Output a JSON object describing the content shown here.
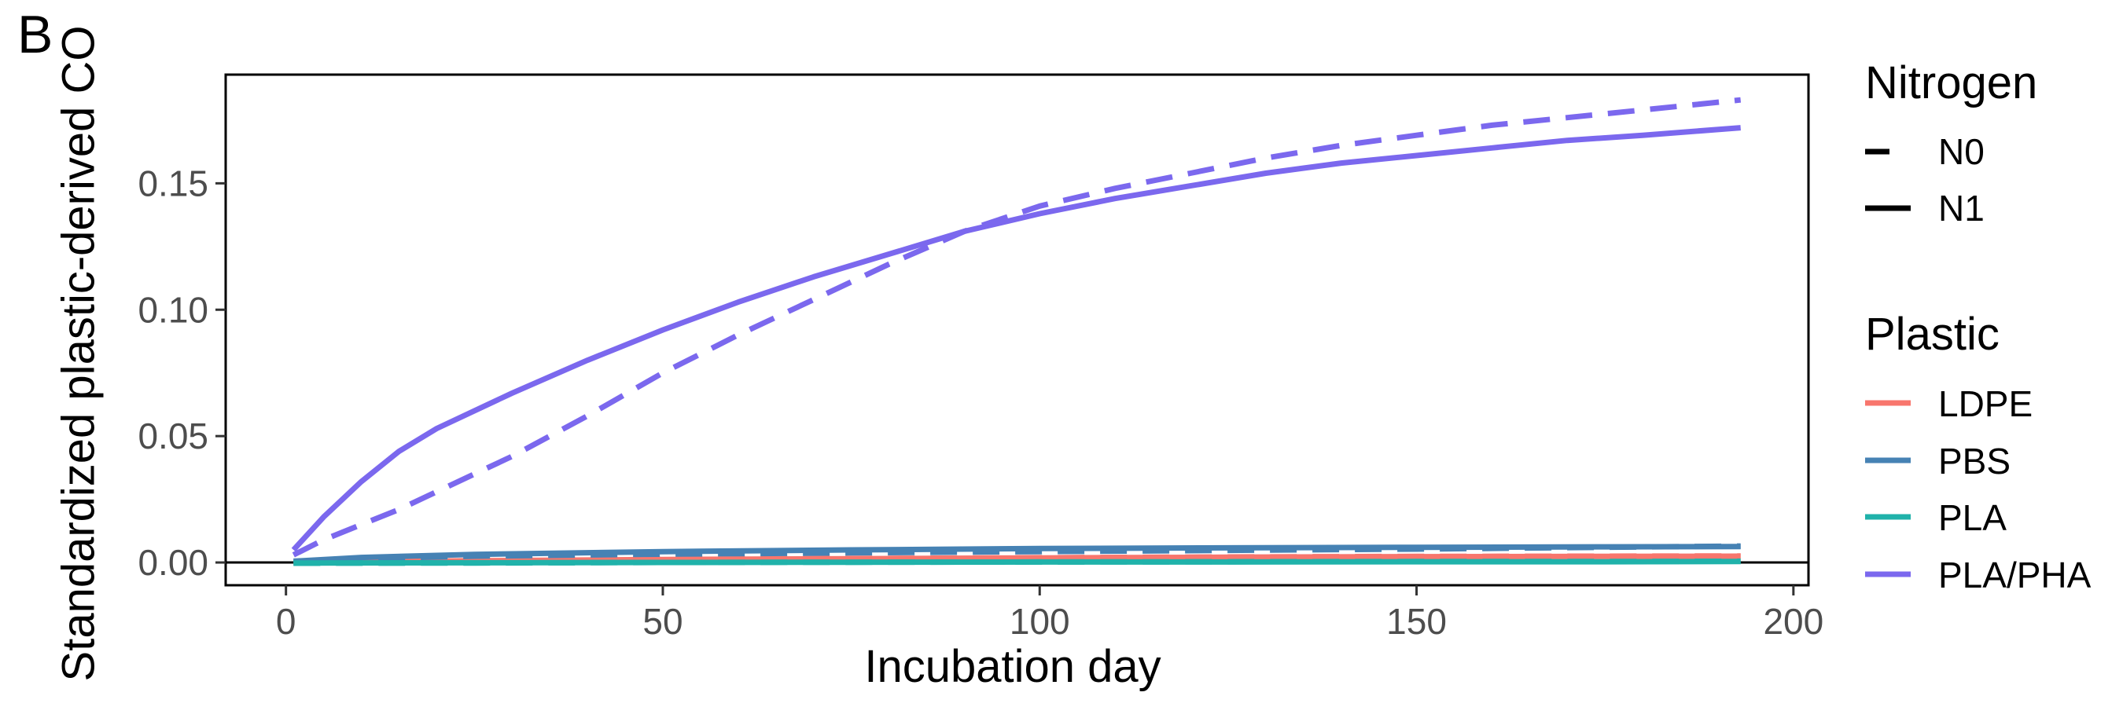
{
  "panel_label": "B",
  "chart_data": {
    "type": "line",
    "title": "",
    "xlabel": "Incubation day",
    "ylabel": "Standardized plastic-derived CO",
    "xlim": [
      -8,
      202
    ],
    "ylim": [
      -0.009,
      0.193
    ],
    "x_ticks": [
      0,
      50,
      100,
      150,
      200
    ],
    "x_tick_labels": [
      "0",
      "50",
      "100",
      "150",
      "200"
    ],
    "y_ticks": [
      0.0,
      0.05,
      0.1,
      0.15
    ],
    "y_tick_labels": [
      "0.00",
      "0.05",
      "0.10",
      "0.15"
    ],
    "reference_line_y": 0,
    "grid": false,
    "legend_position": "right",
    "legend": {
      "nitrogen": {
        "title": "Nitrogen",
        "items": [
          {
            "label": "N0",
            "linetype": "dashed"
          },
          {
            "label": "N1",
            "linetype": "solid"
          }
        ]
      },
      "plastic": {
        "title": "Plastic",
        "items": [
          {
            "label": "LDPE",
            "color": "#F8766D"
          },
          {
            "label": "PBS",
            "color": "#4682B4"
          },
          {
            "label": "PLA",
            "color": "#20B2AA"
          },
          {
            "label": "PLA/PHA",
            "color": "#7B68EE"
          }
        ]
      }
    },
    "series": [
      {
        "plastic": "LDPE",
        "nitrogen": "N0",
        "x": [
          1,
          25,
          50,
          75,
          100,
          125,
          150,
          175,
          193
        ],
        "y": [
          0.0,
          0.0008,
          0.0013,
          0.0016,
          0.0019,
          0.0022,
          0.0024,
          0.0025,
          0.0026
        ]
      },
      {
        "plastic": "LDPE",
        "nitrogen": "N1",
        "x": [
          1,
          25,
          50,
          75,
          100,
          125,
          150,
          175,
          193
        ],
        "y": [
          0.0,
          0.0007,
          0.0012,
          0.0015,
          0.0018,
          0.0021,
          0.0023,
          0.0024,
          0.0025
        ]
      },
      {
        "plastic": "PBS",
        "nitrogen": "N0",
        "x": [
          1,
          10,
          25,
          50,
          75,
          100,
          125,
          150,
          175,
          193
        ],
        "y": [
          0.0,
          0.0015,
          0.0025,
          0.0033,
          0.0038,
          0.0043,
          0.0048,
          0.0053,
          0.006,
          0.0065
        ]
      },
      {
        "plastic": "PBS",
        "nitrogen": "N1",
        "x": [
          1,
          10,
          25,
          50,
          75,
          100,
          125,
          150,
          175,
          193
        ],
        "y": [
          0.0005,
          0.002,
          0.0032,
          0.0043,
          0.005,
          0.0055,
          0.0058,
          0.006,
          0.0062,
          0.0063
        ]
      },
      {
        "plastic": "PLA",
        "nitrogen": "N0",
        "x": [
          1,
          25,
          50,
          75,
          100,
          125,
          150,
          175,
          193
        ],
        "y": [
          -0.0003,
          -0.0002,
          0.0,
          0.0001,
          0.0002,
          0.0003,
          0.0004,
          0.0004,
          0.0005
        ]
      },
      {
        "plastic": "PLA",
        "nitrogen": "N1",
        "x": [
          1,
          25,
          50,
          75,
          100,
          125,
          150,
          175,
          193
        ],
        "y": [
          -0.0002,
          -0.0001,
          0.0,
          0.0001,
          0.0002,
          0.0002,
          0.0003,
          0.0003,
          0.0004
        ]
      },
      {
        "plastic": "PLA/PHA",
        "nitrogen": "N0",
        "x": [
          1,
          5,
          10,
          15,
          20,
          30,
          40,
          50,
          60,
          70,
          80,
          90,
          100,
          110,
          120,
          130,
          140,
          150,
          160,
          170,
          180,
          193
        ],
        "y": [
          0.003,
          0.009,
          0.015,
          0.021,
          0.028,
          0.042,
          0.058,
          0.075,
          0.09,
          0.104,
          0.118,
          0.131,
          0.141,
          0.148,
          0.154,
          0.16,
          0.165,
          0.169,
          0.173,
          0.176,
          0.179,
          0.183
        ]
      },
      {
        "plastic": "PLA/PHA",
        "nitrogen": "N1",
        "x": [
          1,
          5,
          10,
          15,
          20,
          30,
          40,
          50,
          60,
          70,
          80,
          90,
          100,
          110,
          120,
          130,
          140,
          150,
          160,
          170,
          180,
          193
        ],
        "y": [
          0.005,
          0.018,
          0.032,
          0.044,
          0.053,
          0.067,
          0.08,
          0.092,
          0.103,
          0.113,
          0.122,
          0.131,
          0.138,
          0.144,
          0.149,
          0.154,
          0.158,
          0.161,
          0.164,
          0.167,
          0.169,
          0.172
        ]
      }
    ]
  }
}
